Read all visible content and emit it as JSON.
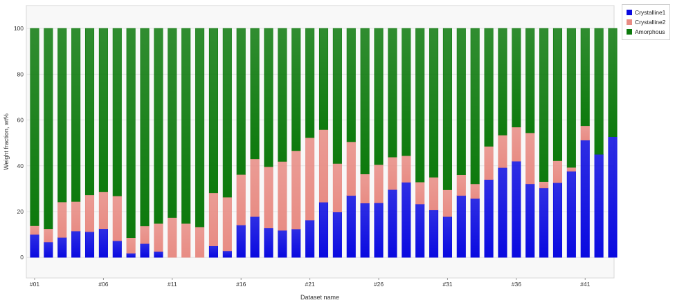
{
  "chart_data": {
    "type": "bar",
    "stacked": true,
    "xlabel": "Dataset name",
    "ylabel": "Weight fraction, wt%",
    "ylim": [
      -9,
      110
    ],
    "yticks": [
      0,
      20,
      40,
      60,
      80,
      100
    ],
    "x_tick_labels": [
      "#01",
      "#06",
      "#11",
      "#16",
      "#21",
      "#26",
      "#31",
      "#36",
      "#41"
    ],
    "legend_position": "top-right",
    "categories": [
      "#01",
      "#02",
      "#03",
      "#04",
      "#05",
      "#06",
      "#07",
      "#08",
      "#09",
      "#10",
      "#11",
      "#12",
      "#13",
      "#14",
      "#15",
      "#16",
      "#17",
      "#18",
      "#19",
      "#20",
      "#21",
      "#22",
      "#23",
      "#24",
      "#25",
      "#26",
      "#27",
      "#28",
      "#29",
      "#30",
      "#31",
      "#32",
      "#33",
      "#34",
      "#35",
      "#36",
      "#37",
      "#38",
      "#39",
      "#40",
      "#41",
      "#42",
      "#43"
    ],
    "series": [
      {
        "name": "Crystalline1",
        "color": "#0a0ae0",
        "values": [
          10,
          6.7,
          8.7,
          11.5,
          11.2,
          12.5,
          7.2,
          1.8,
          6,
          2.6,
          0,
          0,
          0,
          5,
          2.8,
          14.1,
          17.8,
          12.8,
          11.8,
          12.4,
          16.3,
          24.1,
          19.8,
          27,
          23.7,
          23.8,
          29.6,
          32.8,
          23.3,
          20.7,
          17.8,
          27,
          25.7,
          34,
          39.2,
          42,
          32.1,
          30.3,
          32.6,
          37.6,
          51.2,
          45,
          52.7
        ]
      },
      {
        "name": "Crystalline2",
        "color": "#e88c84",
        "values": [
          3.8,
          5.8,
          15.5,
          12.9,
          16.1,
          16.1,
          19.6,
          6.8,
          7.7,
          12.2,
          17.4,
          14.8,
          13.3,
          23.2,
          23.5,
          22.1,
          25.2,
          26.8,
          30.1,
          34.2,
          36,
          31.7,
          21.2,
          23.5,
          12.7,
          16.7,
          14.2,
          11.6,
          9.6,
          14.3,
          11.7,
          9.1,
          6.4,
          14.5,
          14.2,
          14.9,
          22.3,
          2.8,
          9.6,
          1.7,
          6.3,
          0,
          0
        ]
      },
      {
        "name": "Amorphous",
        "color": "#0d7a0d",
        "values": [
          86.2,
          87.5,
          75.8,
          75.6,
          72.7,
          71.4,
          73.2,
          91.4,
          86.3,
          85.2,
          82.6,
          85.2,
          86.7,
          71.8,
          73.7,
          63.8,
          57,
          60.4,
          58.1,
          53.4,
          47.7,
          44.2,
          59,
          49.5,
          63.6,
          59.5,
          56.2,
          55.6,
          67.1,
          65,
          70.5,
          63.9,
          67.9,
          51.5,
          46.6,
          43.1,
          45.6,
          66.9,
          57.8,
          60.7,
          42.5,
          55,
          47.3
        ]
      }
    ]
  }
}
